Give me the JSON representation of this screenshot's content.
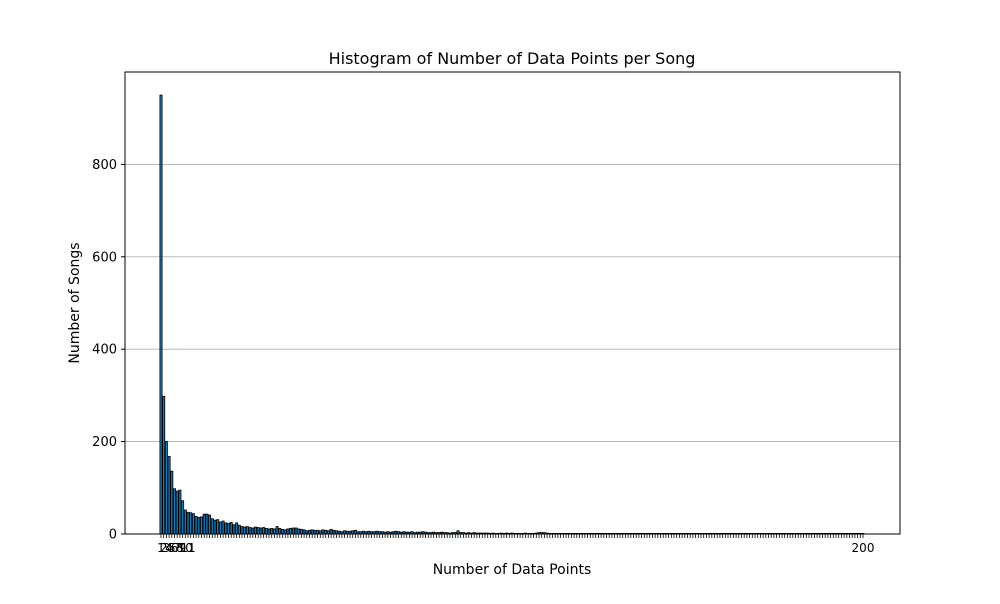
{
  "chart_data": {
    "type": "bar",
    "title": "Histogram of Number of Data Points per Song",
    "xlabel": "Number of Data Points",
    "ylabel": "Number of Songs",
    "ylim": [
      0,
      1000
    ],
    "yticks": [
      0,
      200,
      400,
      600,
      800
    ],
    "grid": "y",
    "x_tick_labels_visible": [
      "1",
      "2",
      "3",
      "4",
      "5",
      "6",
      "7",
      "8",
      "9",
      "10",
      "11",
      "200"
    ],
    "categories_range": [
      1,
      261
    ],
    "values": [
      950,
      298,
      200,
      168,
      136,
      98,
      93,
      95,
      72,
      52,
      47,
      46,
      44,
      38,
      36,
      37,
      43,
      43,
      41,
      33,
      30,
      31,
      26,
      28,
      24,
      23,
      25,
      20,
      24,
      19,
      16,
      15,
      16,
      14,
      13,
      15,
      14,
      13,
      14,
      12,
      11,
      12,
      11,
      16,
      12,
      10,
      9,
      11,
      12,
      13,
      13,
      11,
      10,
      9,
      7,
      8,
      9,
      8,
      8,
      7,
      9,
      8,
      7,
      10,
      8,
      7,
      6,
      5,
      7,
      6,
      6,
      7,
      8,
      5,
      5,
      6,
      5,
      6,
      5,
      5,
      6,
      5,
      5,
      4,
      5,
      4,
      5,
      6,
      5,
      4,
      5,
      4,
      4,
      5,
      3,
      4,
      4,
      5,
      4,
      3,
      3,
      4,
      3,
      3,
      4,
      3,
      3,
      2,
      3,
      3,
      7,
      3,
      3,
      2,
      3,
      2,
      3,
      2,
      2,
      2,
      2,
      2,
      1,
      2,
      1,
      1,
      2,
      1,
      2,
      1,
      2,
      1,
      1,
      1,
      1,
      2,
      1,
      1,
      1,
      2,
      3,
      3,
      3,
      2,
      1,
      1,
      1,
      1,
      1,
      1,
      1,
      1,
      1,
      1,
      1,
      1,
      1,
      1,
      1,
      1,
      1,
      1,
      1,
      1,
      1,
      1,
      1,
      1,
      1,
      1,
      1,
      1,
      1,
      1,
      1,
      1,
      1,
      1,
      1,
      1,
      1,
      1,
      1,
      1,
      1,
      1,
      1,
      1,
      1,
      1,
      1,
      1,
      1,
      1,
      1,
      1,
      1,
      1,
      1,
      1,
      1,
      1,
      1,
      1,
      1,
      1,
      1,
      1,
      1,
      1,
      1,
      1,
      1,
      1,
      1,
      1,
      1,
      1,
      1,
      1,
      1,
      1,
      1,
      1,
      1,
      1,
      1,
      1,
      1,
      1,
      1,
      1,
      1,
      1,
      1,
      1,
      1,
      1,
      1,
      1,
      1,
      1,
      1,
      1,
      1,
      1,
      1,
      1,
      1,
      1,
      1,
      1,
      1,
      1,
      1,
      1,
      1,
      1,
      1,
      1,
      1
    ],
    "bar_color": "#1f77b4",
    "edge_color": "#000000",
    "grid_color": "#b0b0b0"
  }
}
